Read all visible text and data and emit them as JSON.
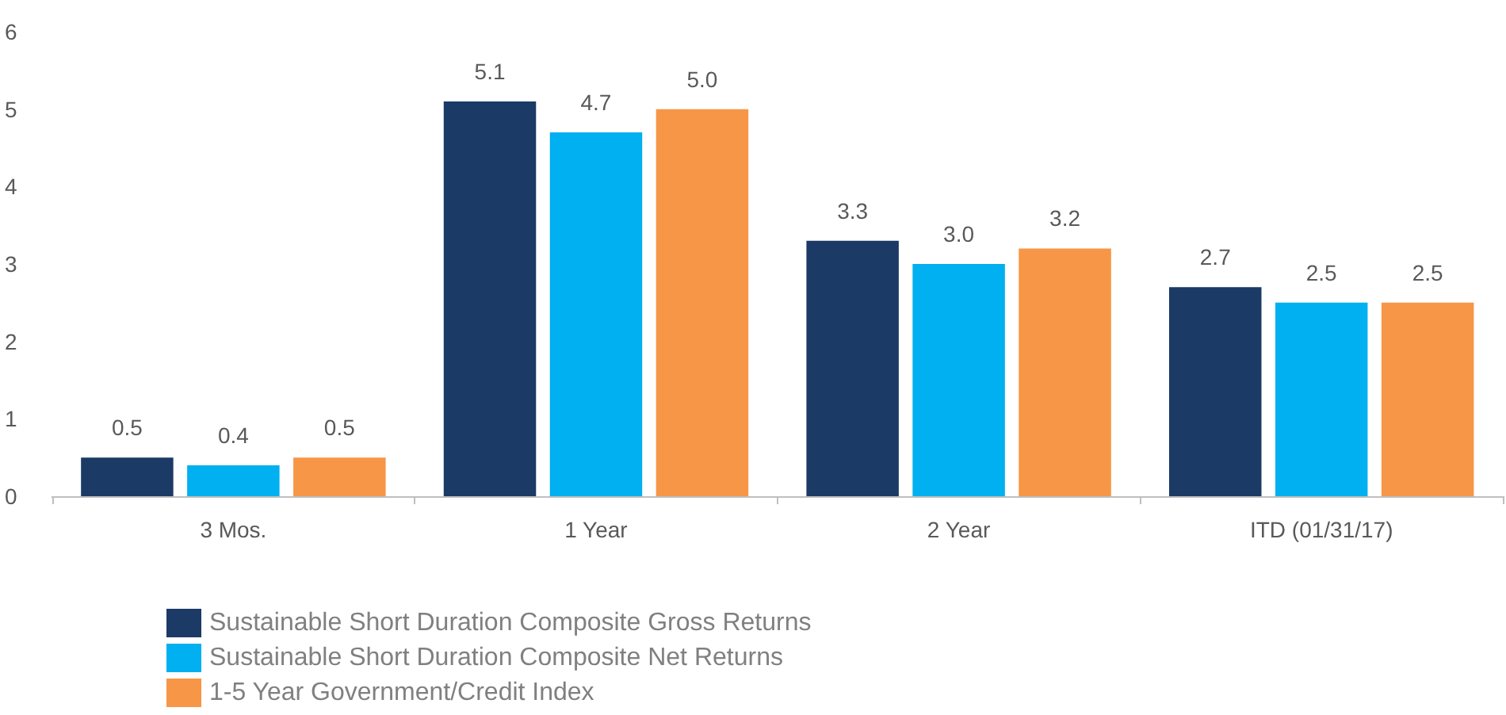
{
  "chart_data": {
    "type": "bar",
    "categories": [
      "3 Mos.",
      "1 Year",
      "2 Year",
      "ITD (01/31/17)"
    ],
    "series": [
      {
        "name": "Sustainable Short Duration Composite Gross Returns",
        "color": "#1b3a65",
        "values": [
          0.5,
          5.1,
          3.3,
          2.7
        ],
        "value_labels": [
          "0.5",
          "5.1",
          "3.3",
          "2.7"
        ]
      },
      {
        "name": "Sustainable Short Duration Composite Net Returns",
        "color": "#00b0f0",
        "values": [
          0.4,
          4.7,
          3.0,
          2.5
        ],
        "value_labels": [
          "0.4",
          "4.7",
          "3.0",
          "2.5"
        ]
      },
      {
        "name": "1-5 Year Government/Credit Index",
        "color": "#f79646",
        "values": [
          0.5,
          5.0,
          3.2,
          2.5
        ],
        "value_labels": [
          "0.5",
          "5.0",
          "3.2",
          "2.5"
        ]
      }
    ],
    "ylim": [
      0,
      6
    ],
    "yticks": [
      0,
      1,
      2,
      3,
      4,
      5,
      6
    ],
    "grid": false,
    "legend": "bottom"
  }
}
